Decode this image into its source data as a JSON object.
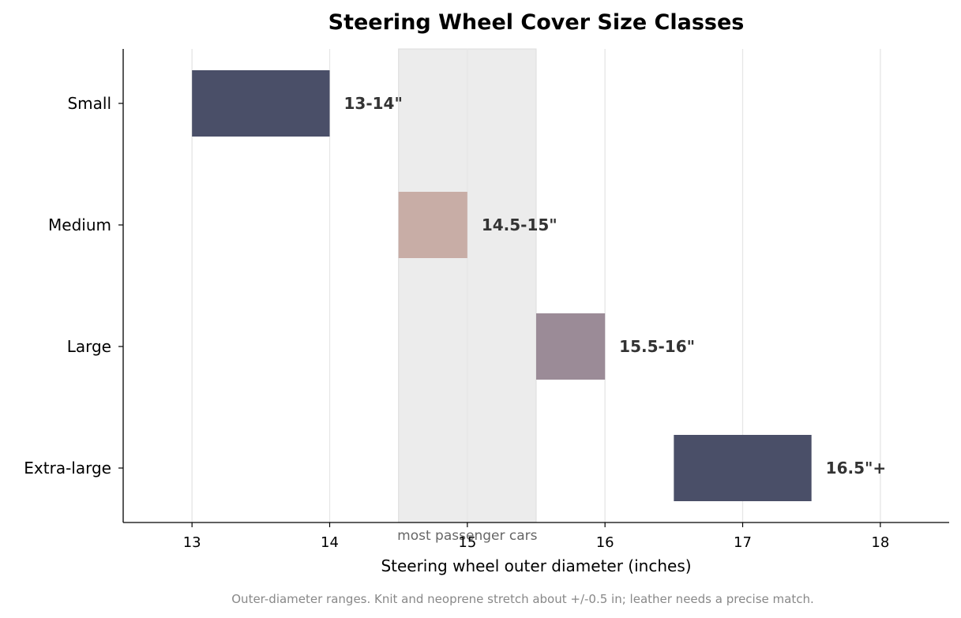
{
  "chart_data": {
    "type": "bar",
    "orientation": "horizontal-range",
    "title": "Steering Wheel Cover Size Classes",
    "xlabel": "Steering wheel outer diameter (inches)",
    "ylabel": "",
    "xlim": [
      12.5,
      18.5
    ],
    "xticks": [
      13,
      14,
      15,
      16,
      17,
      18
    ],
    "grid": "vertical",
    "categories": [
      "Small",
      "Medium",
      "Large",
      "Extra-large"
    ],
    "ranges": [
      {
        "category": "Small",
        "start": 13,
        "end": 14,
        "label": "13-14\"",
        "color": "#4a4f68"
      },
      {
        "category": "Medium",
        "start": 14.5,
        "end": 15,
        "label": "14.5-15\"",
        "color": "#c8ada6"
      },
      {
        "category": "Large",
        "start": 15.5,
        "end": 16,
        "label": "15.5-16\"",
        "color": "#9b8b97"
      },
      {
        "category": "Extra-large",
        "start": 16.5,
        "end": 17.5,
        "label": "16.5\"+",
        "color": "#4a4f68"
      }
    ],
    "highlight_band": {
      "start": 14.5,
      "end": 15.5,
      "label": "most passenger cars",
      "color": "#ececec"
    },
    "caption": "Outer-diameter ranges. Knit and neoprene stretch about +/-0.5 in; leather needs a precise match."
  }
}
